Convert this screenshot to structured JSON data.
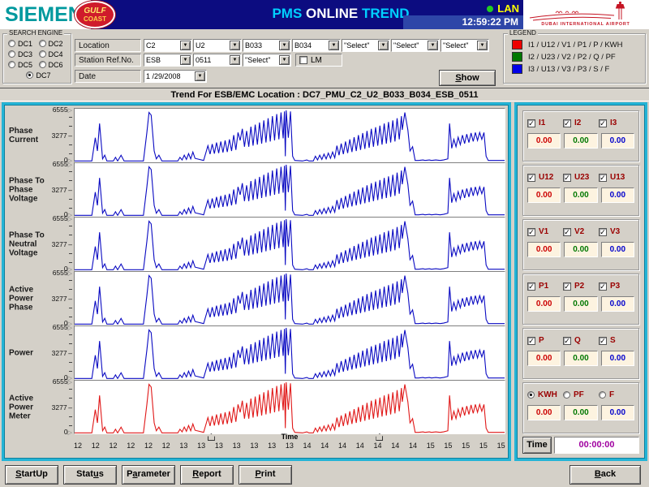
{
  "header": {
    "brand": "SIEMENS",
    "badge_line1": "GULF",
    "badge_line2": "COAST",
    "title_part1": "PMS",
    "title_part2": "ONLINE",
    "title_part3": "TREND",
    "lan_label": "LAN",
    "clock": "12:59:22 PM",
    "airport_caption": "DUBAI INTERNATIONAL AIRPORT"
  },
  "search_engine": {
    "title": "SEARCH ENGINE",
    "options": [
      "DC1",
      "DC2",
      "DC3",
      "DC4",
      "DC5",
      "DC6",
      "DC7"
    ],
    "selected": "DC7"
  },
  "form": {
    "location_label": "Location",
    "location_values": [
      "C2",
      "U2",
      "B033",
      "B034",
      "\"Select\"",
      "\"Select\"",
      "\"Select\""
    ],
    "station_label": "Station Ref.No.",
    "station_values": [
      "ESB",
      "0511",
      "\"Select\""
    ],
    "lm_label": "LM",
    "lm_checked": false,
    "date_label": "Date",
    "date_value": "1 /29/2008",
    "show": {
      "pre": "",
      "key": "S",
      "post": "how"
    }
  },
  "legend": {
    "title": "LEGEND",
    "items": [
      {
        "color": "#ee0000",
        "label": "I1 / U12 / V1 / P1 / P / KWH"
      },
      {
        "color": "#007800",
        "label": "I2 / U23 / V2 / P2 / Q / PF"
      },
      {
        "color": "#0000e8",
        "label": "I3 / U13 / V3 / P3 / S / F"
      }
    ]
  },
  "trend_title": "Trend For ESB/EMC Location :  DC7_PMU_C2_U2_B033_B034_ESB_0511",
  "charts": {
    "panels": [
      {
        "name": "Phase Current",
        "color": "#0a0ac2"
      },
      {
        "name": "Phase To Phase Voltage",
        "color": "#0a0ac2"
      },
      {
        "name": "Phase To Neutral Voltage",
        "color": "#0a0ac2"
      },
      {
        "name": "Active Power Phase",
        "color": "#0a0ac2"
      },
      {
        "name": "Power",
        "color": "#0a0ac2"
      },
      {
        "name": "Active Power Meter",
        "color": "#e01818"
      }
    ],
    "y_ticks": [
      "6555",
      "3277",
      "0"
    ],
    "x_ticks": [
      "12",
      "12",
      "12",
      "12",
      "12",
      "12",
      "13",
      "13",
      "13",
      "13",
      "13",
      "13",
      "13",
      "14",
      "14",
      "14",
      "14",
      "14",
      "14",
      "14",
      "15",
      "15",
      "15",
      "15",
      "15"
    ],
    "x_label": "Time",
    "cursor_positions": [
      0.31,
      0.7
    ],
    "waveform": [
      0,
      0.01,
      0.04,
      0.01,
      0.048,
      0.45,
      0.053,
      0.2,
      0.058,
      0.72,
      0.065,
      0.05,
      0.07,
      0.12,
      0.075,
      0.01,
      0.09,
      0.01,
      0.095,
      0.08,
      0.1,
      0.01,
      0.108,
      0.12,
      0.115,
      0.01,
      0.16,
      0.01,
      0.168,
      0.55,
      0.173,
      0.93,
      0.178,
      0.88,
      0.185,
      0.2,
      0.19,
      0.05,
      0.196,
      0.12,
      0.203,
      0.01,
      0.24,
      0.01,
      0.245,
      0.08,
      0.25,
      0.03,
      0.255,
      0.12,
      0.26,
      0.04,
      0.265,
      0.15,
      0.27,
      0.05,
      0.275,
      0.18,
      0.28,
      0.06,
      0.3,
      0.02,
      0.31,
      0.3,
      0.315,
      0.14,
      0.32,
      0.33,
      0.325,
      0.15,
      0.33,
      0.36,
      0.335,
      0.16,
      0.34,
      0.38,
      0.345,
      0.17,
      0.35,
      0.4,
      0.355,
      0.18,
      0.36,
      0.42,
      0.365,
      0.2,
      0.37,
      0.5,
      0.375,
      0.22,
      0.38,
      0.55,
      0.385,
      0.4,
      0.39,
      0.62,
      0.395,
      0.28,
      0.4,
      0.58,
      0.405,
      0.28,
      0.41,
      0.66,
      0.415,
      0.3,
      0.42,
      0.7,
      0.425,
      0.32,
      0.43,
      0.74,
      0.435,
      0.34,
      0.44,
      0.78,
      0.445,
      0.36,
      0.45,
      0.82,
      0.455,
      0.38,
      0.46,
      0.86,
      0.465,
      0.4,
      0.47,
      0.9,
      0.475,
      0.42,
      0.48,
      0.93,
      0.485,
      0.44,
      0.488,
      0.95,
      0.49,
      0.1,
      0.492,
      0.97,
      0.497,
      0.45,
      0.502,
      0.95,
      0.507,
      0.1,
      0.512,
      0.02,
      0.53,
      0.01,
      0.54,
      0.03,
      0.545,
      0.01,
      0.555,
      0.01,
      0.56,
      0.1,
      0.565,
      0.03,
      0.57,
      0.12,
      0.575,
      0.04,
      0.58,
      0.14,
      0.585,
      0.05,
      0.59,
      0.16,
      0.595,
      0.06,
      0.6,
      0.18,
      0.605,
      0.07,
      0.61,
      0.3,
      0.615,
      0.12,
      0.62,
      0.34,
      0.625,
      0.14,
      0.63,
      0.38,
      0.635,
      0.16,
      0.64,
      0.42,
      0.645,
      0.18,
      0.65,
      0.46,
      0.655,
      0.2,
      0.66,
      0.5,
      0.665,
      0.22,
      0.67,
      0.54,
      0.675,
      0.24,
      0.68,
      0.58,
      0.685,
      0.26,
      0.69,
      0.62,
      0.695,
      0.28,
      0.7,
      0.65,
      0.705,
      0.3,
      0.71,
      0.68,
      0.715,
      0.32,
      0.72,
      0.72,
      0.725,
      0.34,
      0.73,
      0.75,
      0.735,
      0.36,
      0.74,
      0.78,
      0.745,
      0.38,
      0.75,
      0.82,
      0.755,
      0.42,
      0.76,
      0.86,
      0.762,
      0.6,
      0.768,
      0.93,
      0.775,
      0.6,
      0.78,
      0.2,
      0.786,
      0.28,
      0.792,
      0.02,
      0.8,
      0.02,
      0.81,
      0.03,
      0.815,
      0.02,
      0.825,
      0.03,
      0.83,
      0.02,
      0.84,
      0.03,
      0.85,
      0.02,
      0.858,
      0.03,
      0.868,
      0.05,
      0.872,
      0.72,
      0.877,
      0.25,
      0.882,
      0.42,
      0.887,
      0.28,
      0.892,
      0.46,
      0.897,
      0.32,
      0.902,
      0.5,
      0.907,
      0.34,
      0.912,
      0.52,
      0.917,
      0.36,
      0.922,
      0.54,
      0.927,
      0.38,
      0.932,
      0.55,
      0.937,
      0.4,
      0.942,
      0.55,
      0.947,
      0.42,
      0.952,
      0.55,
      0.957,
      0.1,
      0.962,
      0.02,
      1,
      0.02
    ]
  },
  "right_panel": {
    "groups": [
      {
        "type": "checkbox",
        "items": [
          {
            "label": "I1",
            "checked": true,
            "value": "0.00",
            "value_color": "#cc0000"
          },
          {
            "label": "I2",
            "checked": true,
            "value": "0.00",
            "value_color": "#007800"
          },
          {
            "label": "I3",
            "checked": true,
            "value": "0.00",
            "value_color": "#0000cc"
          }
        ]
      },
      {
        "type": "checkbox",
        "items": [
          {
            "label": "U12",
            "checked": true,
            "value": "0.00",
            "value_color": "#cc0000"
          },
          {
            "label": "U23",
            "checked": true,
            "value": "0.00",
            "value_color": "#007800"
          },
          {
            "label": "U13",
            "checked": true,
            "value": "0.00",
            "value_color": "#0000cc"
          }
        ]
      },
      {
        "type": "checkbox",
        "items": [
          {
            "label": "V1",
            "checked": true,
            "value": "0.00",
            "value_color": "#cc0000"
          },
          {
            "label": "V2",
            "checked": true,
            "value": "0.00",
            "value_color": "#007800"
          },
          {
            "label": "V3",
            "checked": true,
            "value": "0.00",
            "value_color": "#0000cc"
          }
        ]
      },
      {
        "type": "checkbox",
        "items": [
          {
            "label": "P1",
            "checked": true,
            "value": "0.00",
            "value_color": "#cc0000"
          },
          {
            "label": "P2",
            "checked": true,
            "value": "0.00",
            "value_color": "#007800"
          },
          {
            "label": "P3",
            "checked": true,
            "value": "0.00",
            "value_color": "#0000cc"
          }
        ]
      },
      {
        "type": "checkbox",
        "items": [
          {
            "label": "P",
            "checked": true,
            "value": "0.00",
            "value_color": "#cc0000"
          },
          {
            "label": "Q",
            "checked": true,
            "value": "0.00",
            "value_color": "#007800"
          },
          {
            "label": "S",
            "checked": true,
            "value": "0.00",
            "value_color": "#0000cc"
          }
        ]
      },
      {
        "type": "radio",
        "items": [
          {
            "label": "KWH",
            "checked": true,
            "value": "0.00",
            "value_color": "#cc0000"
          },
          {
            "label": "PF",
            "checked": false,
            "value": "0.00",
            "value_color": "#007800"
          },
          {
            "label": "F",
            "checked": false,
            "value": "0.00",
            "value_color": "#0000cc"
          }
        ]
      }
    ],
    "time_label": "Time",
    "time_value": "00:00:00"
  },
  "toolbar": {
    "buttons": [
      {
        "name": "startup",
        "pre": "",
        "key": "S",
        "post": "tartUp"
      },
      {
        "name": "status",
        "pre": "Stat",
        "key": "u",
        "post": "s"
      },
      {
        "name": "parameter",
        "pre": "P",
        "key": "a",
        "post": "rameter"
      },
      {
        "name": "report",
        "pre": "",
        "key": "R",
        "post": "eport"
      },
      {
        "name": "print",
        "pre": "",
        "key": "P",
        "post": "rint"
      }
    ],
    "back": {
      "pre": "",
      "key": "B",
      "post": "ack"
    }
  }
}
